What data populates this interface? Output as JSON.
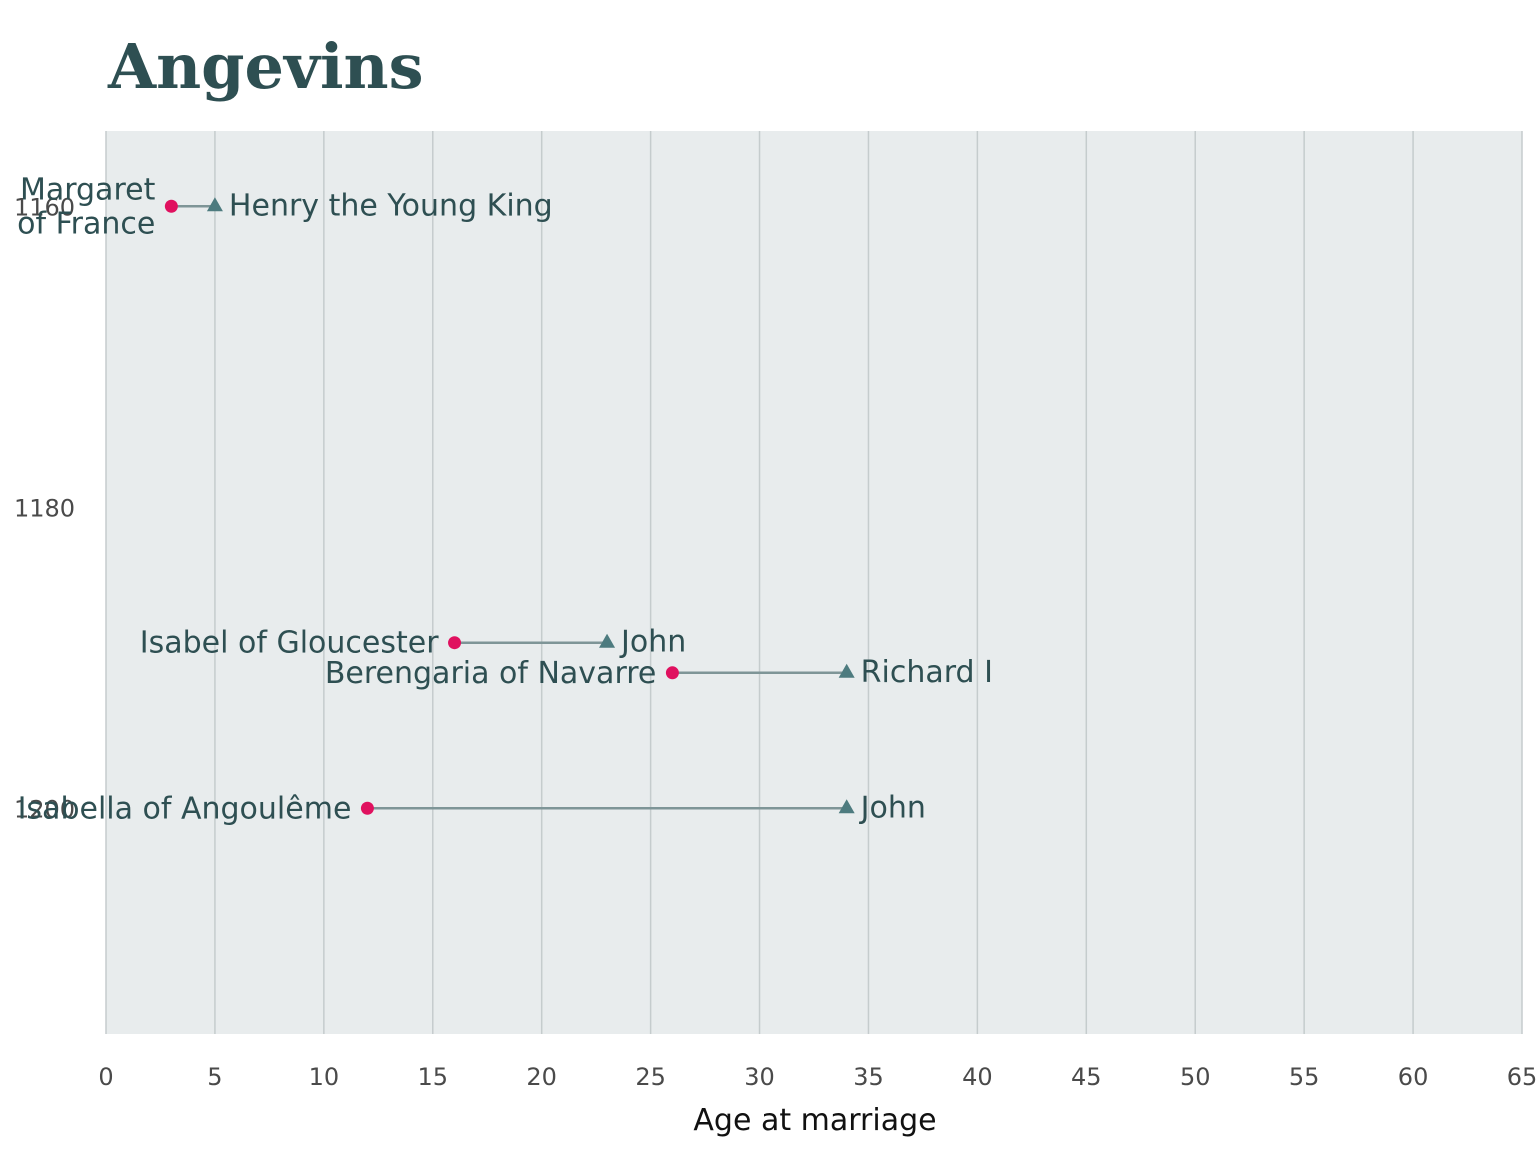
{
  "chart_data": {
    "type": "dumbbell",
    "title": "Angevins",
    "xlabel": "Age at marriage",
    "ylabel": "",
    "xlim": [
      0,
      65
    ],
    "ylim": [
      1155,
      1215
    ],
    "x_ticks": [
      0,
      5,
      10,
      15,
      20,
      25,
      30,
      35,
      40,
      45,
      50,
      55,
      60,
      65
    ],
    "y_ticks": [
      1160,
      1180,
      1200
    ],
    "grid": "vertical",
    "colors": {
      "panel_bg": "#e8eced",
      "wife_marker": "#e0115f",
      "king_marker": "#4d7b7f",
      "connector": "#7e9597",
      "text": "#2e4f52"
    },
    "marriages": [
      {
        "year": 1160,
        "wife": "Margaret of France",
        "wife_lines": [
          "Margaret",
          "of France"
        ],
        "wife_age": 3,
        "king": "Henry the Young King",
        "king_age": 5
      },
      {
        "year": 1189,
        "wife": "Isabel of Gloucester",
        "wife_lines": [
          "Isabel of Gloucester"
        ],
        "wife_age": 16,
        "king": "John",
        "king_age": 23
      },
      {
        "year": 1191,
        "wife": "Berengaria of Navarre",
        "wife_lines": [
          "Berengaria of Navarre"
        ],
        "wife_age": 26,
        "king": "Richard I",
        "king_age": 34
      },
      {
        "year": 1200,
        "wife": "Isabella of Angoulême",
        "wife_lines": [
          "Isabella of Angoulême"
        ],
        "wife_age": 12,
        "king": "John",
        "king_age": 34
      }
    ]
  }
}
